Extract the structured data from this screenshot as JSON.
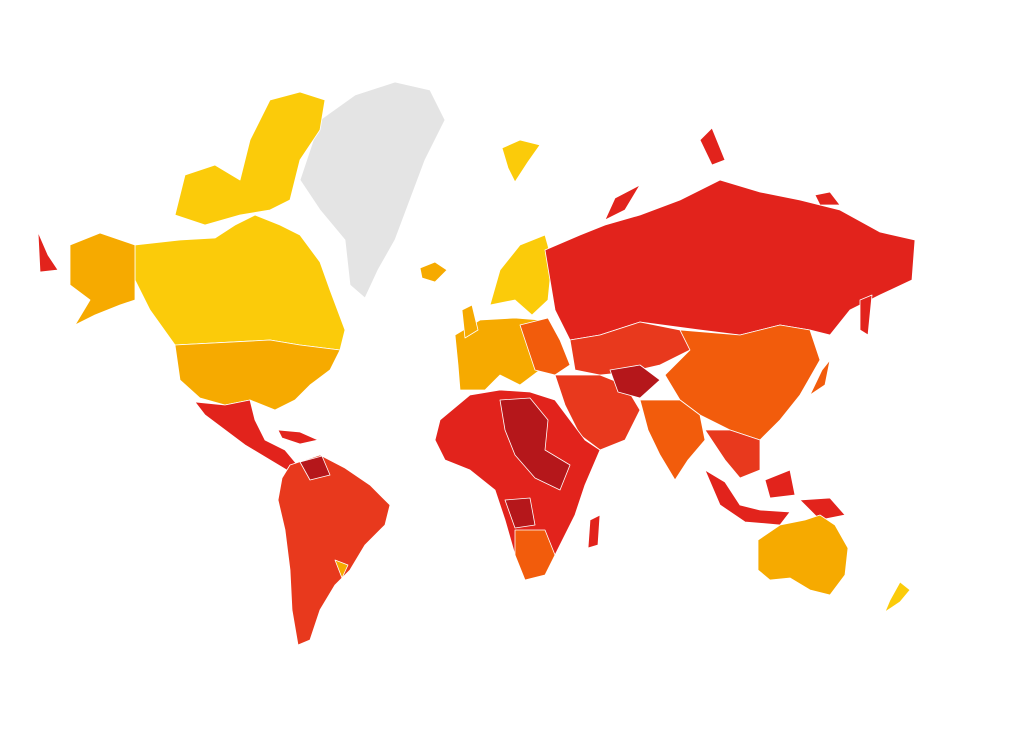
{
  "map": {
    "palette": [
      "#fbcb0a",
      "#f6aa00",
      "#f25c0c",
      "#e8391d",
      "#e2231c",
      "#b5171b",
      "#e4e4e4"
    ],
    "border_color": "#ffffff"
  }
}
